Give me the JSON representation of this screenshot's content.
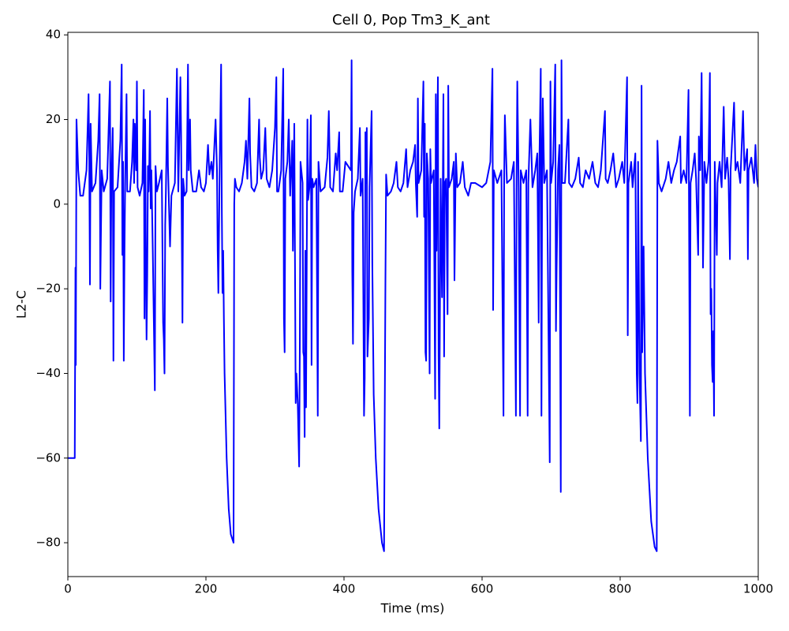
{
  "chart_data": {
    "type": "line",
    "title": "Cell 0, Pop Tm3_K_ant",
    "xlabel": "Time (ms)",
    "ylabel": "L2-C",
    "color": "#0000ff",
    "xlim": [
      0,
      1000
    ],
    "ylim": [
      -88,
      40.6
    ],
    "xticks": [
      0,
      200,
      400,
      600,
      800,
      1000
    ],
    "yticks": [
      {
        "value": -80,
        "label": "−80"
      },
      {
        "value": -60,
        "label": "−60"
      },
      {
        "value": -40,
        "label": "−40"
      },
      {
        "value": -20,
        "label": "−20"
      },
      0,
      20,
      40
    ],
    "x": [
      0,
      10,
      11,
      11.5,
      12.5,
      15,
      18,
      22,
      27,
      30,
      31,
      32,
      33,
      35,
      40,
      44,
      46,
      47,
      49,
      52,
      57,
      61,
      62,
      63,
      65,
      66,
      67,
      72,
      76,
      78,
      79,
      80,
      81,
      82,
      83,
      85,
      86,
      90,
      93,
      95,
      96,
      97,
      99,
      100,
      101,
      104,
      108,
      110,
      111,
      112,
      113,
      114,
      115,
      116,
      117,
      118,
      119,
      120,
      121,
      123,
      126,
      127,
      129,
      132,
      136,
      138,
      139,
      140,
      141,
      142,
      144,
      145,
      148,
      150,
      155,
      158,
      160,
      163,
      164,
      166,
      167,
      169,
      172,
      174,
      175,
      177,
      178,
      181,
      186,
      190,
      193,
      197,
      200,
      203,
      205,
      208,
      210,
      214,
      216,
      217,
      218,
      220,
      222,
      223,
      224,
      225,
      226,
      227,
      230,
      233,
      236,
      240,
      241,
      242,
      244,
      248,
      252,
      256,
      258,
      260,
      263,
      264,
      266,
      270,
      274,
      277,
      278,
      280,
      283,
      286,
      288,
      292,
      296,
      300,
      302,
      303,
      305,
      309,
      312,
      313,
      314,
      315,
      318,
      320,
      322,
      325,
      326,
      328,
      329,
      330,
      331,
      333,
      335,
      336,
      337,
      340,
      341,
      342,
      343,
      344,
      345,
      347,
      348,
      350,
      352,
      353,
      354,
      356,
      360,
      362,
      363,
      366,
      372,
      376,
      378,
      380,
      384,
      388,
      390,
      393,
      394,
      398,
      402,
      406,
      410,
      411,
      412,
      413,
      414,
      416,
      420,
      423,
      424,
      427,
      429,
      430,
      431,
      432,
      433,
      434,
      436,
      437,
      440,
      441,
      443,
      446,
      450,
      455,
      458,
      460,
      461,
      463,
      468,
      472,
      476,
      478,
      482,
      486,
      490,
      492,
      496,
      500,
      503,
      504,
      506,
      507,
      508,
      512,
      515,
      516,
      517,
      518,
      519,
      520,
      522,
      524,
      525,
      526,
      530,
      532,
      533,
      534,
      536,
      537,
      538,
      540,
      542,
      544,
      545,
      546,
      548,
      550,
      551,
      552,
      556,
      559,
      560,
      562,
      564,
      568,
      572,
      575,
      580,
      584,
      590,
      600,
      606,
      612,
      615,
      616,
      617,
      622,
      628,
      631,
      632,
      633,
      636,
      642,
      646,
      649,
      650,
      651,
      653,
      655,
      656,
      660,
      664,
      666,
      667,
      670,
      673,
      677,
      680,
      682,
      683,
      685,
      686,
      687,
      688,
      690,
      694,
      698,
      699,
      700,
      703,
      706,
      707,
      708,
      710,
      712,
      714,
      715,
      716,
      720,
      725,
      726,
      730,
      735,
      740,
      742,
      746,
      750,
      755,
      760,
      764,
      768,
      772,
      778,
      779,
      782,
      786,
      790,
      794,
      798,
      803,
      806,
      810,
      811,
      812,
      816,
      818,
      822,
      824,
      825,
      826,
      828,
      830,
      831,
      832,
      834,
      836,
      840,
      845,
      850,
      853,
      854,
      856,
      860,
      866,
      870,
      874,
      878,
      882,
      887,
      888,
      892,
      896,
      899,
      901,
      902,
      905,
      908,
      910,
      913,
      914,
      916,
      918,
      920,
      922,
      925,
      928,
      930,
      931,
      932,
      933,
      934,
      935,
      936,
      937,
      940,
      941,
      944,
      947,
      950,
      952,
      955,
      957,
      959,
      960,
      965,
      967,
      970,
      974,
      978,
      980,
      984,
      985,
      986,
      990,
      994,
      996,
      998,
      1000
    ],
    "values": [
      -60,
      -60,
      -15,
      -38,
      20,
      8,
      2,
      2,
      8,
      26,
      10,
      -19,
      19,
      3,
      5,
      15,
      26,
      -20,
      8,
      3,
      6,
      29,
      -23,
      5,
      18,
      -37,
      3,
      4,
      15,
      33,
      -12,
      10,
      -37,
      -12,
      5,
      26,
      3,
      3,
      10,
      20,
      5,
      19,
      8,
      29,
      4,
      2,
      5,
      27,
      -27,
      20,
      -13,
      -32,
      -17,
      9,
      3,
      10,
      22,
      -1,
      8,
      -11,
      -44,
      9,
      3,
      5,
      8,
      -28,
      -32,
      -40,
      -5,
      3,
      25,
      9,
      -10,
      2,
      5,
      32,
      3,
      30,
      17,
      -28,
      6,
      2,
      3,
      33,
      8,
      20,
      8,
      3,
      3,
      8,
      4,
      3,
      5,
      14,
      7,
      10,
      6,
      20,
      8,
      -11,
      -21,
      10,
      33,
      -1,
      -21,
      -11,
      -27,
      -40,
      -60,
      -72,
      -78,
      -80,
      0,
      6,
      4,
      3,
      5,
      10,
      15,
      6,
      25,
      12,
      4,
      3,
      5,
      20,
      11,
      6,
      8,
      18,
      6,
      4,
      8,
      18,
      30,
      3,
      3,
      8,
      32,
      -27,
      -35,
      6,
      10,
      20,
      2,
      15,
      -11,
      19,
      -14,
      -47,
      -40,
      -47,
      -62,
      -34,
      10,
      5,
      -35,
      -36,
      -55,
      -11,
      -48,
      20,
      1,
      4,
      21,
      -38,
      6,
      4,
      6,
      -50,
      10,
      3,
      4,
      11,
      22,
      4,
      3,
      12,
      8,
      17,
      3,
      3,
      10,
      9,
      8,
      34,
      -16,
      -33,
      -2,
      3,
      6,
      18,
      2,
      6,
      -50,
      -41,
      17,
      5,
      18,
      -36,
      -27,
      4,
      22,
      -14,
      -45,
      -60,
      -72,
      -80,
      -82,
      -18,
      7,
      2,
      3,
      5,
      10,
      4,
      3,
      5,
      13,
      4,
      8,
      10,
      14,
      5,
      -3,
      25,
      5,
      8,
      29,
      -3,
      19,
      -35,
      -37,
      12,
      6,
      -40,
      13,
      5,
      8,
      -46,
      26,
      -11,
      30,
      -36,
      -53,
      6,
      -22,
      26,
      -36,
      5,
      6,
      -26,
      28,
      4,
      6,
      10,
      -18,
      12,
      4,
      5,
      10,
      4,
      2,
      5,
      5,
      4,
      5,
      10,
      32,
      -25,
      8,
      5,
      8,
      -50,
      6,
      21,
      5,
      6,
      10,
      -50,
      6,
      29,
      4,
      -50,
      8,
      5,
      8,
      -50,
      5,
      20,
      4,
      8,
      12,
      -28,
      10,
      32,
      -50,
      6,
      25,
      5,
      8,
      -61,
      29,
      5,
      10,
      33,
      -30,
      -15,
      8,
      14,
      -68,
      34,
      5,
      5,
      20,
      5,
      4,
      6,
      11,
      5,
      4,
      8,
      6,
      10,
      5,
      4,
      8,
      22,
      6,
      5,
      8,
      12,
      4,
      6,
      10,
      5,
      30,
      -31,
      5,
      10,
      4,
      12,
      -40,
      -47,
      10,
      -40,
      -56,
      28,
      -35,
      -10,
      -40,
      -60,
      -75,
      -81,
      -82,
      15,
      5,
      3,
      6,
      10,
      5,
      8,
      10,
      16,
      5,
      8,
      5,
      27,
      -50,
      5,
      8,
      12,
      6,
      -12,
      16,
      8,
      31,
      -15,
      10,
      5,
      10,
      31,
      -26,
      -20,
      -38,
      -42,
      -30,
      -50,
      10,
      -12,
      5,
      10,
      4,
      23,
      6,
      11,
      6,
      -13,
      8,
      24,
      8,
      10,
      5,
      22,
      8,
      13,
      -13,
      8,
      11,
      5,
      14,
      6,
      4
    ]
  }
}
